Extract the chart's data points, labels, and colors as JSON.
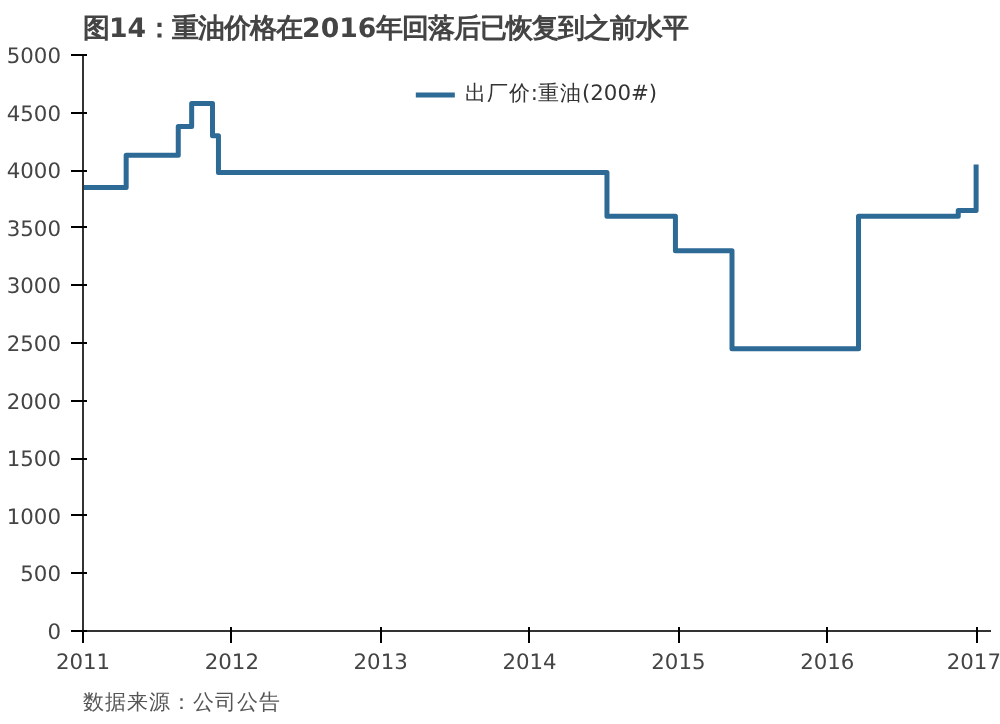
{
  "chart_data": {
    "type": "step",
    "title": "图14：重油价格在2016年回落后已恢复到之前水平",
    "x": [
      2011,
      2011.29,
      2011.64,
      2011.73,
      2011.87,
      2011.91,
      2014.52,
      2014.98,
      2015.36,
      2016.21,
      2016.88,
      2017
    ],
    "series": [
      {
        "name": "出厂价:重油(200#)",
        "color": "#2e6a96",
        "values": [
          3850,
          4130,
          4380,
          4580,
          4300,
          3980,
          3600,
          3300,
          2450,
          3600,
          3650,
          4050
        ]
      }
    ],
    "xlim": [
      2011,
      2017.1
    ],
    "xticks": [
      2011,
      2012,
      2013,
      2014,
      2015,
      2016,
      2017
    ],
    "ylim": [
      0,
      5000
    ],
    "yticks": [
      0,
      500,
      1000,
      1500,
      2000,
      2500,
      3000,
      3500,
      4000,
      4500,
      5000
    ],
    "grid": false,
    "legend": "top",
    "annotations": [
      "数据来源：公司公告"
    ]
  }
}
